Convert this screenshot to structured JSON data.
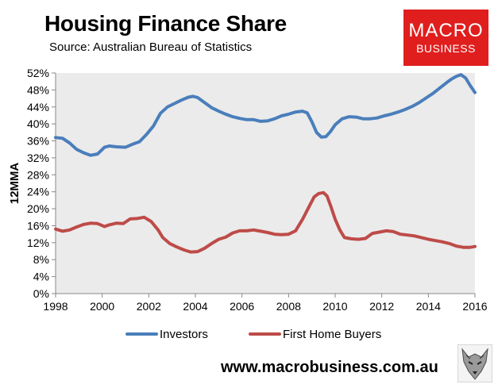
{
  "title": "Housing Finance Share",
  "subtitle": "Source: Australian Bureau of Statistics",
  "logo": {
    "line1": "MACRO",
    "line2": "BUSINESS",
    "color": "#e01e1e"
  },
  "website": "www.macrobusiness.com.au",
  "chart_data": {
    "type": "line",
    "ylabel": "12MMA",
    "xlabel": "",
    "xlim": [
      1998,
      2016
    ],
    "ylim": [
      0,
      52
    ],
    "x_ticks": [
      "1998",
      "2000",
      "2002",
      "2004",
      "2006",
      "2008",
      "2010",
      "2012",
      "2014",
      "2016"
    ],
    "y_ticks": [
      "0%",
      "4%",
      "8%",
      "12%",
      "16%",
      "20%",
      "24%",
      "28%",
      "32%",
      "36%",
      "40%",
      "44%",
      "48%",
      "52%"
    ],
    "plot_background": "#ebebeb",
    "legend_position": "bottom",
    "series": [
      {
        "name": "Investors",
        "color": "#4a7ebb",
        "x": [
          1998.0,
          1998.3,
          1998.6,
          1998.9,
          1999.2,
          1999.5,
          1999.8,
          2000.1,
          2000.3,
          2000.6,
          2001.0,
          2001.3,
          2001.6,
          2001.9,
          2002.2,
          2002.5,
          2002.8,
          2003.1,
          2003.4,
          2003.7,
          2003.9,
          2004.1,
          2004.4,
          2004.7,
          2005.0,
          2005.3,
          2005.6,
          2005.9,
          2006.2,
          2006.5,
          2006.8,
          2007.1,
          2007.4,
          2007.7,
          2008.0,
          2008.3,
          2008.6,
          2008.8,
          2009.0,
          2009.2,
          2009.4,
          2009.6,
          2009.8,
          2010.0,
          2010.3,
          2010.6,
          2010.9,
          2011.2,
          2011.5,
          2011.8,
          2012.1,
          2012.4,
          2012.7,
          2013.0,
          2013.3,
          2013.6,
          2013.9,
          2014.2,
          2014.5,
          2014.8,
          2015.0,
          2015.2,
          2015.4,
          2015.6,
          2015.8,
          2016.0
        ],
        "values": [
          36.8,
          36.6,
          35.5,
          34.0,
          33.2,
          32.6,
          32.9,
          34.5,
          34.8,
          34.6,
          34.5,
          35.2,
          35.8,
          37.5,
          39.5,
          42.5,
          44.0,
          44.8,
          45.6,
          46.3,
          46.5,
          46.2,
          45.0,
          43.8,
          43.0,
          42.3,
          41.7,
          41.3,
          41.0,
          41.0,
          40.6,
          40.7,
          41.2,
          41.9,
          42.3,
          42.8,
          43.0,
          42.6,
          40.5,
          38.0,
          36.9,
          37.0,
          38.2,
          39.8,
          41.2,
          41.7,
          41.6,
          41.2,
          41.2,
          41.4,
          41.9,
          42.3,
          42.8,
          43.4,
          44.1,
          45.0,
          46.1,
          47.2,
          48.5,
          49.8,
          50.6,
          51.2,
          51.6,
          50.8,
          49.0,
          47.4
        ]
      },
      {
        "name": "First Home Buyers",
        "color": "#be4b48",
        "x": [
          1998.0,
          1998.3,
          1998.6,
          1998.9,
          1999.2,
          1999.5,
          1999.8,
          2000.1,
          2000.3,
          2000.6,
          2000.9,
          2001.2,
          2001.5,
          2001.8,
          2002.1,
          2002.4,
          2002.6,
          2002.9,
          2003.2,
          2003.5,
          2003.8,
          2004.1,
          2004.4,
          2004.7,
          2005.0,
          2005.3,
          2005.6,
          2005.9,
          2006.2,
          2006.5,
          2006.8,
          2007.1,
          2007.4,
          2007.7,
          2008.0,
          2008.3,
          2008.6,
          2008.9,
          2009.1,
          2009.3,
          2009.5,
          2009.65,
          2009.8,
          2010.0,
          2010.2,
          2010.4,
          2010.7,
          2011.0,
          2011.3,
          2011.6,
          2011.9,
          2012.2,
          2012.5,
          2012.8,
          2013.1,
          2013.4,
          2013.7,
          2014.0,
          2014.3,
          2014.6,
          2014.9,
          2015.2,
          2015.5,
          2015.8,
          2016.0
        ],
        "values": [
          15.2,
          14.7,
          15.0,
          15.7,
          16.3,
          16.6,
          16.5,
          15.8,
          16.2,
          16.6,
          16.5,
          17.6,
          17.7,
          18.0,
          17.0,
          15.0,
          13.2,
          11.8,
          11.0,
          10.3,
          9.8,
          9.9,
          10.7,
          11.8,
          12.8,
          13.3,
          14.3,
          14.8,
          14.8,
          15.0,
          14.7,
          14.4,
          14.0,
          13.9,
          14.0,
          14.8,
          17.5,
          20.7,
          22.8,
          23.6,
          23.8,
          23.0,
          20.8,
          17.5,
          15.0,
          13.2,
          12.9,
          12.8,
          13.0,
          14.2,
          14.5,
          14.8,
          14.6,
          14.0,
          13.8,
          13.6,
          13.2,
          12.8,
          12.5,
          12.2,
          11.8,
          11.2,
          10.9,
          10.9,
          11.1
        ]
      }
    ]
  }
}
